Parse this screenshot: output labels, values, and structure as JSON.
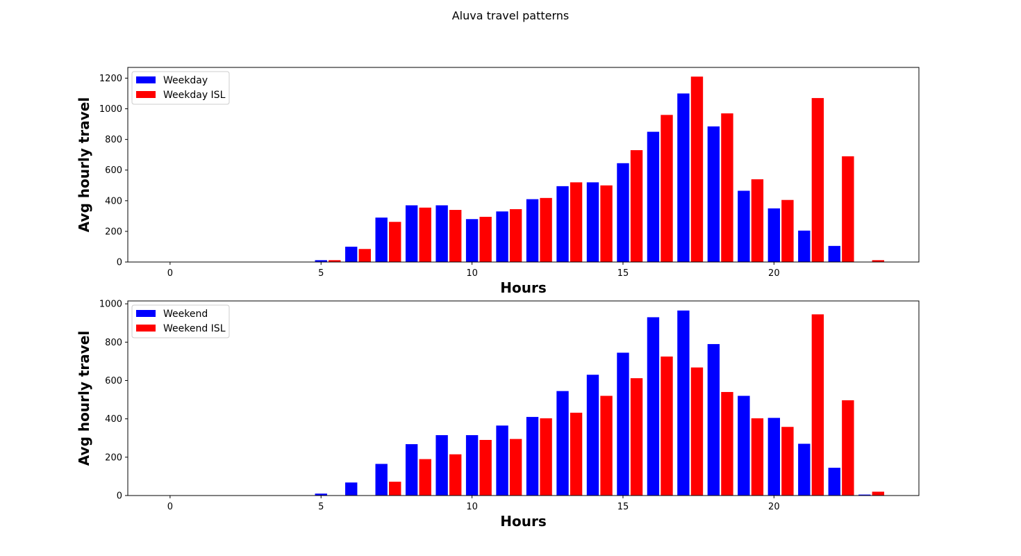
{
  "figure": {
    "title": "Aluva travel patterns"
  },
  "colors": {
    "primary": "#0000ff",
    "isl": "#ff0000"
  },
  "chart_data": [
    {
      "type": "bar",
      "title": "",
      "xlabel": "Hours",
      "ylabel": "Avg hourly travel",
      "xlim": [
        -1.4,
        24.8
      ],
      "ylim": [
        0,
        1270
      ],
      "xticks": [
        0,
        5,
        10,
        15,
        20
      ],
      "yticks": [
        0,
        200,
        400,
        600,
        800,
        1000,
        1200
      ],
      "grid": false,
      "legend_position": "top-left",
      "series": [
        {
          "name": "Weekday",
          "color": "#0000ff",
          "offset": 0,
          "x": [
            5,
            6,
            7,
            8,
            9,
            10,
            11,
            12,
            13,
            14,
            15,
            16,
            17,
            18,
            19,
            20,
            21,
            22
          ],
          "values": [
            12,
            100,
            290,
            370,
            370,
            280,
            330,
            410,
            495,
            520,
            645,
            850,
            1100,
            885,
            465,
            350,
            205,
            105
          ]
        },
        {
          "name": "Weekday ISL",
          "color": "#ff0000",
          "offset": 0.45,
          "x": [
            5,
            6,
            7,
            8,
            9,
            10,
            11,
            12,
            13,
            14,
            15,
            16,
            17,
            18,
            19,
            20,
            21,
            22,
            23
          ],
          "values": [
            12,
            85,
            262,
            355,
            340,
            295,
            345,
            418,
            520,
            500,
            730,
            960,
            1210,
            970,
            540,
            405,
            1070,
            690,
            12
          ]
        }
      ]
    },
    {
      "type": "bar",
      "title": "",
      "xlabel": "Hours",
      "ylabel": "Avg hourly travel",
      "xlim": [
        -1.4,
        24.8
      ],
      "ylim": [
        0,
        1015
      ],
      "xticks": [
        0,
        5,
        10,
        15,
        20
      ],
      "yticks": [
        0,
        200,
        400,
        600,
        800,
        1000
      ],
      "grid": false,
      "legend_position": "top-left",
      "series": [
        {
          "name": "Weekend",
          "color": "#0000ff",
          "offset": 0,
          "x": [
            5,
            6,
            7,
            8,
            9,
            10,
            11,
            12,
            13,
            14,
            15,
            16,
            17,
            18,
            19,
            20,
            21,
            22,
            23
          ],
          "values": [
            10,
            68,
            165,
            268,
            315,
            315,
            365,
            410,
            545,
            630,
            745,
            930,
            965,
            790,
            520,
            405,
            270,
            145,
            5
          ]
        },
        {
          "name": "Weekend ISL",
          "color": "#ff0000",
          "offset": 0.45,
          "x": [
            7,
            8,
            9,
            10,
            11,
            12,
            13,
            14,
            15,
            16,
            17,
            18,
            19,
            20,
            21,
            22,
            23
          ],
          "values": [
            72,
            190,
            215,
            290,
            295,
            403,
            432,
            520,
            612,
            725,
            668,
            540,
            403,
            358,
            945,
            497,
            20
          ]
        }
      ]
    }
  ]
}
